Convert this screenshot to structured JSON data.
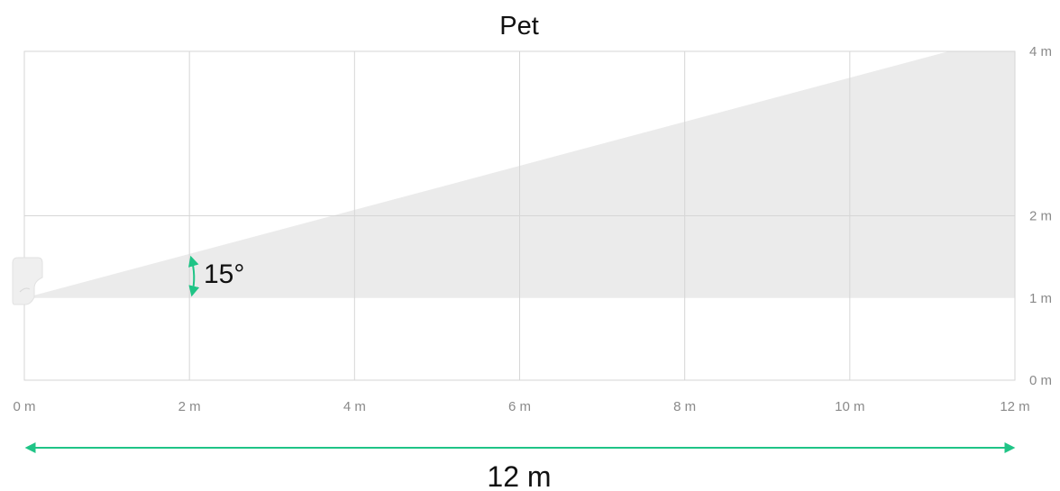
{
  "title": "Pet",
  "angle_label": "15°",
  "range_label": "12 m",
  "x_ticks": [
    {
      "value": 0,
      "label": "0 m"
    },
    {
      "value": 2,
      "label": "2 m"
    },
    {
      "value": 4,
      "label": "4 m"
    },
    {
      "value": 6,
      "label": "6 m"
    },
    {
      "value": 8,
      "label": "8 m"
    },
    {
      "value": 10,
      "label": "10 m"
    },
    {
      "value": 12,
      "label": "12 m"
    }
  ],
  "y_ticks": [
    {
      "value": 0,
      "label": "0 m"
    },
    {
      "value": 1,
      "label": "1 m"
    },
    {
      "value": 2,
      "label": "2 m"
    },
    {
      "value": 4,
      "label": "4 m"
    }
  ],
  "x_range": [
    0,
    12
  ],
  "y_range": [
    0,
    4
  ],
  "detection_zone": {
    "origin_height_m": 1,
    "angle_deg": 15,
    "range_m": 12
  },
  "colors": {
    "zone_fill": "#ebebeb",
    "grid": "#d6d6d6",
    "accent": "#1fc486",
    "sensor": "#efefef"
  },
  "icons": {
    "sensor": "motion-sensor-icon",
    "angle": "double-arrow-icon",
    "range": "double-arrow-icon"
  }
}
